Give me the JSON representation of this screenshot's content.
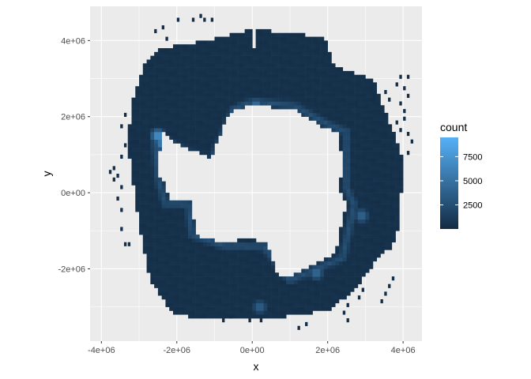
{
  "chart_data": {
    "type": "heatmap",
    "xlabel": "x",
    "ylabel": "y",
    "xlim": [
      -4300000,
      4500000
    ],
    "ylim": [
      -3900000,
      4900000
    ],
    "x_ticks": [
      {
        "value": -4000000,
        "label": "-4e+06"
      },
      {
        "value": -2000000,
        "label": "-2e+06"
      },
      {
        "value": 0,
        "label": "0e+00"
      },
      {
        "value": 2000000,
        "label": "2e+06"
      },
      {
        "value": 4000000,
        "label": "4e+06"
      }
    ],
    "y_ticks": [
      {
        "value": -2000000,
        "label": "-2e+06"
      },
      {
        "value": 0,
        "label": "0e+00"
      },
      {
        "value": 2000000,
        "label": "2e+06"
      },
      {
        "value": 4000000,
        "label": "4e+06"
      }
    ],
    "legend": {
      "title": "count",
      "placement": "right",
      "range": [
        1,
        9500
      ],
      "breaks": [
        {
          "value": 2500,
          "label": "2500"
        },
        {
          "value": 5000,
          "label": "5000"
        },
        {
          "value": 7500,
          "label": "7500"
        }
      ],
      "low_color": "#132B43",
      "high_color": "#56B1F7"
    },
    "panel_background": "#EBEBEB",
    "grid": true,
    "bin_width": 100000,
    "data_shape": {
      "outer_boundary_ring": [
        [
          -2900000,
          3300000
        ],
        [
          -2400000,
          3800000
        ],
        [
          -1200000,
          4000000
        ],
        [
          0,
          4300000
        ],
        [
          1900000,
          4100000
        ],
        [
          2200000,
          3300000
        ],
        [
          3200000,
          3000000
        ],
        [
          3700000,
          1700000
        ],
        [
          4000000,
          900000
        ],
        [
          3900000,
          -900000
        ],
        [
          3700000,
          -1500000
        ],
        [
          3400000,
          -1600000
        ],
        [
          2700000,
          -2600000
        ],
        [
          2000000,
          -3100000
        ],
        [
          500000,
          -3300000
        ],
        [
          -1200000,
          -3300000
        ],
        [
          -2100000,
          -3200000
        ],
        [
          -2700000,
          -2300000
        ],
        [
          -3000000,
          -800000
        ],
        [
          -3300000,
          1200000
        ],
        [
          -3200000,
          2300000
        ]
      ],
      "inner_void_ring": [
        [
          -2400000,
          1600000
        ],
        [
          -2000000,
          1300000
        ],
        [
          -1100000,
          900000
        ],
        [
          -900000,
          1400000
        ],
        [
          -600000,
          2100000
        ],
        [
          0,
          2300000
        ],
        [
          1100000,
          2200000
        ],
        [
          1900000,
          1700000
        ],
        [
          2300000,
          1600000
        ],
        [
          2400000,
          700000
        ],
        [
          2300000,
          100000
        ],
        [
          2500000,
          -300000
        ],
        [
          2200000,
          -1600000
        ],
        [
          1600000,
          -1900000
        ],
        [
          1000000,
          -2200000
        ],
        [
          700000,
          -2200000
        ],
        [
          400000,
          -1300000
        ],
        [
          -100000,
          -1200000
        ],
        [
          -700000,
          -1300000
        ],
        [
          -1300000,
          -1200000
        ],
        [
          -1500000,
          -1000000
        ],
        [
          -1600000,
          -400000
        ],
        [
          -1600000,
          -200000
        ],
        [
          -2200000,
          -200000
        ],
        [
          -2300000,
          200000
        ],
        [
          -2500000,
          500000
        ]
      ],
      "bright_edge_ring": [
        [
          -2600000,
          1600000
        ],
        [
          -2000000,
          1200000
        ],
        [
          -1100000,
          800000
        ],
        [
          -800000,
          1500000
        ],
        [
          -500000,
          2200000
        ],
        [
          0,
          2400000
        ],
        [
          1100000,
          2300000
        ],
        [
          2000000,
          1800000
        ],
        [
          2500000,
          1600000
        ],
        [
          2500000,
          100000
        ],
        [
          2700000,
          -300000
        ],
        [
          2400000,
          -1700000
        ],
        [
          1000000,
          -2300000
        ],
        [
          300000,
          -1400000
        ],
        [
          -700000,
          -1400000
        ],
        [
          -1600000,
          -1100000
        ],
        [
          -1700000,
          -300000
        ],
        [
          -2300000,
          -300000
        ],
        [
          -2500000,
          400000
        ]
      ],
      "bright_spots": [
        {
          "x": -2500000,
          "y": 1500000,
          "count": 9000
        },
        {
          "x": -2400000,
          "y": 1300000,
          "count": 7500
        },
        {
          "x": 100000,
          "y": 2300000,
          "count": 6000
        },
        {
          "x": 1700000,
          "y": -2100000,
          "count": 5500
        },
        {
          "x": 2900000,
          "y": -600000,
          "count": 5000
        },
        {
          "x": 200000,
          "y": -3000000,
          "count": 4500
        }
      ],
      "stray_points": [
        [
          -2600000,
          4200000
        ],
        [
          -2400000,
          4300000
        ],
        [
          -2000000,
          4500000
        ],
        [
          -1600000,
          4500000
        ],
        [
          -1300000,
          4500000
        ],
        [
          -1400000,
          4600000
        ],
        [
          -1100000,
          4500000
        ],
        [
          -2300000,
          4000000
        ],
        [
          -3400000,
          2000000
        ],
        [
          -3500000,
          1700000
        ],
        [
          -3400000,
          1200000
        ],
        [
          -3500000,
          900000
        ],
        [
          -3700000,
          600000
        ],
        [
          -3600000,
          400000
        ],
        [
          -3500000,
          100000
        ],
        [
          -3600000,
          -200000
        ],
        [
          -3500000,
          -500000
        ],
        [
          -3500000,
          -1000000
        ],
        [
          -3400000,
          -1400000
        ],
        [
          -3300000,
          -1400000
        ],
        [
          -3800000,
          500000
        ],
        [
          -3700000,
          300000
        ],
        [
          3900000,
          3000000
        ],
        [
          4000000,
          2700000
        ],
        [
          4100000,
          2500000
        ],
        [
          4000000,
          1900000
        ],
        [
          4100000,
          1500000
        ],
        [
          4200000,
          1300000
        ],
        [
          3800000,
          1800000
        ],
        [
          3900000,
          1600000
        ],
        [
          3600000,
          2400000
        ],
        [
          3500000,
          2600000
        ],
        [
          3200000,
          2500000
        ],
        [
          4100000,
          3000000
        ],
        [
          4000000,
          2100000
        ],
        [
          3900000,
          2300000
        ],
        [
          3800000,
          2800000
        ],
        [
          4100000,
          1000000
        ],
        [
          3700000,
          -2300000
        ],
        [
          3600000,
          -2500000
        ],
        [
          3500000,
          -2700000
        ],
        [
          3400000,
          -2900000
        ],
        [
          2900000,
          -2600000
        ],
        [
          2800000,
          -2800000
        ],
        [
          2500000,
          -3000000
        ],
        [
          2400000,
          -3200000
        ],
        [
          2500000,
          -3400000
        ],
        [
          1400000,
          -3500000
        ],
        [
          1200000,
          -3600000
        ],
        [
          200000,
          -3400000
        ],
        [
          -100000,
          -3400000
        ],
        [
          -600000,
          -3300000
        ],
        [
          -800000,
          -3400000
        ]
      ]
    }
  }
}
